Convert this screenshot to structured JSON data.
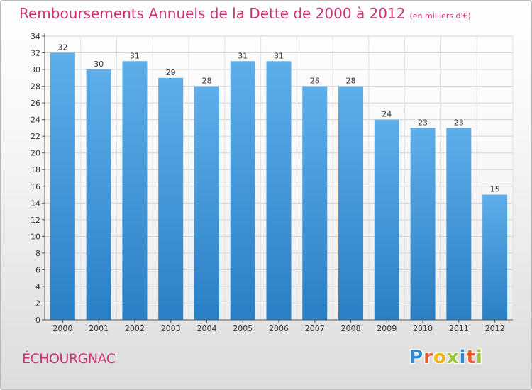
{
  "chart_data": {
    "type": "bar",
    "title": "Remboursements Annuels de la Dette de 2000 à 2012",
    "subtitle": "(en milliers d'€)",
    "categories": [
      "2000",
      "2001",
      "2002",
      "2003",
      "2004",
      "2005",
      "2006",
      "2007",
      "2008",
      "2009",
      "2010",
      "2011",
      "2012"
    ],
    "values": [
      32,
      30,
      31,
      29,
      28,
      31,
      31,
      28,
      28,
      24,
      23,
      23,
      15
    ],
    "ylim": [
      0,
      34
    ],
    "yticks": [
      0,
      2,
      4,
      6,
      8,
      10,
      12,
      14,
      16,
      18,
      20,
      22,
      24,
      26,
      28,
      30,
      32,
      34
    ],
    "grid": true,
    "xlabel": "",
    "ylabel": "",
    "colors": {
      "bar_top": "#5eaeea",
      "bar_bottom": "#2a7fc4",
      "title": "#cc3372"
    }
  },
  "footer": {
    "commune": "ÉCHOURGNAC",
    "brand_letters": [
      {
        "ch": "P",
        "color": "#2f8bd6"
      },
      {
        "ch": "r",
        "color": "#e85a2a"
      },
      {
        "ch": "o",
        "color": "#f3b316"
      },
      {
        "ch": "x",
        "color": "#9bc832"
      },
      {
        "ch": "i",
        "color": "#2f8bd6"
      },
      {
        "ch": "t",
        "color": "#e85a2a"
      },
      {
        "ch": "i",
        "color": "#9bc832"
      }
    ]
  }
}
